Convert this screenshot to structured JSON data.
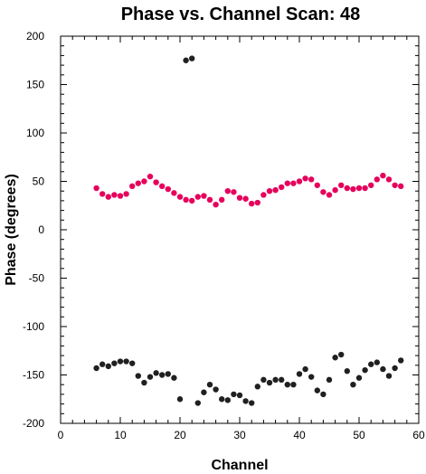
{
  "chart_data": {
    "type": "scatter",
    "title": "Phase vs. Channel Scan: 48",
    "xlabel": "Channel",
    "ylabel": "Phase (degrees)",
    "xlim": [
      0,
      60
    ],
    "ylim": [
      -200,
      200
    ],
    "x_major_ticks": [
      0,
      10,
      20,
      30,
      40,
      50,
      60
    ],
    "x_minor_step": 2,
    "y_major_ticks": [
      -200,
      -150,
      -100,
      -50,
      0,
      50,
      100,
      150,
      200
    ],
    "y_minor_step": 10,
    "grid": false,
    "series": [
      {
        "color": "#e6005c",
        "points": [
          [
            6,
            43
          ],
          [
            7,
            37
          ],
          [
            8,
            34
          ],
          [
            9,
            36
          ],
          [
            10,
            35
          ],
          [
            11,
            37
          ],
          [
            12,
            45
          ],
          [
            13,
            48
          ],
          [
            14,
            50
          ],
          [
            15,
            55
          ],
          [
            16,
            49
          ],
          [
            17,
            45
          ],
          [
            18,
            42
          ],
          [
            19,
            38
          ],
          [
            20,
            34
          ],
          [
            21,
            31
          ],
          [
            22,
            30
          ],
          [
            23,
            34
          ],
          [
            24,
            35
          ],
          [
            25,
            31
          ],
          [
            26,
            26
          ],
          [
            27,
            31
          ],
          [
            28,
            40
          ],
          [
            29,
            39
          ],
          [
            30,
            33
          ],
          [
            31,
            32
          ],
          [
            32,
            27
          ],
          [
            33,
            28
          ],
          [
            34,
            36
          ],
          [
            35,
            40
          ],
          [
            36,
            41
          ],
          [
            37,
            44
          ],
          [
            38,
            48
          ],
          [
            39,
            48
          ],
          [
            40,
            50
          ],
          [
            41,
            53
          ],
          [
            42,
            52
          ],
          [
            43,
            46
          ],
          [
            44,
            39
          ],
          [
            45,
            36
          ],
          [
            46,
            41
          ],
          [
            47,
            46
          ],
          [
            48,
            43
          ],
          [
            49,
            42
          ],
          [
            50,
            43
          ],
          [
            51,
            43
          ],
          [
            52,
            46
          ],
          [
            53,
            52
          ],
          [
            54,
            56
          ],
          [
            55,
            52
          ],
          [
            56,
            46
          ],
          [
            57,
            45
          ]
        ]
      },
      {
        "color": "#202020",
        "points": [
          [
            6,
            -143
          ],
          [
            7,
            -139
          ],
          [
            8,
            -141
          ],
          [
            9,
            -138
          ],
          [
            10,
            -136
          ],
          [
            11,
            -136
          ],
          [
            12,
            -138
          ],
          [
            13,
            -151
          ],
          [
            14,
            -158
          ],
          [
            15,
            -152
          ],
          [
            16,
            -148
          ],
          [
            17,
            -150
          ],
          [
            18,
            -149
          ],
          [
            19,
            -153
          ],
          [
            20,
            -175
          ],
          [
            21,
            175
          ],
          [
            22,
            177
          ],
          [
            23,
            -179
          ],
          [
            24,
            -168
          ],
          [
            25,
            -160
          ],
          [
            26,
            -165
          ],
          [
            27,
            -175
          ],
          [
            28,
            -176
          ],
          [
            29,
            -170
          ],
          [
            30,
            -171
          ],
          [
            31,
            -177
          ],
          [
            32,
            -179
          ],
          [
            33,
            -162
          ],
          [
            34,
            -155
          ],
          [
            35,
            -158
          ],
          [
            36,
            -155
          ],
          [
            37,
            -155
          ],
          [
            38,
            -160
          ],
          [
            39,
            -160
          ],
          [
            40,
            -149
          ],
          [
            41,
            -144
          ],
          [
            42,
            -152
          ],
          [
            43,
            -166
          ],
          [
            44,
            -170
          ],
          [
            45,
            -155
          ],
          [
            46,
            -132
          ],
          [
            47,
            -129
          ],
          [
            48,
            -146
          ],
          [
            49,
            -160
          ],
          [
            50,
            -153
          ],
          [
            51,
            -145
          ],
          [
            52,
            -139
          ],
          [
            53,
            -137
          ],
          [
            54,
            -144
          ],
          [
            55,
            -151
          ],
          [
            56,
            -143
          ],
          [
            57,
            -135
          ]
        ]
      }
    ]
  }
}
